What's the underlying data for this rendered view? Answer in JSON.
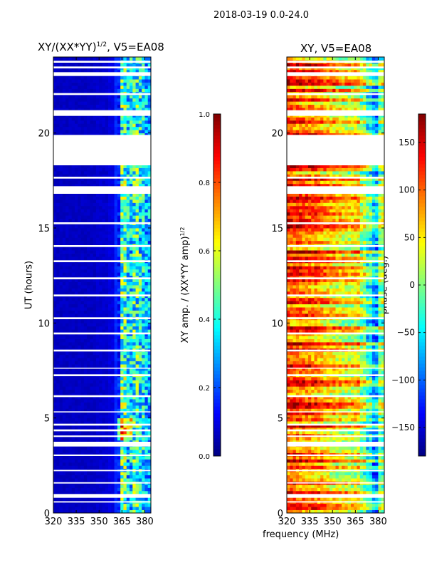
{
  "suptitle": "2018-03-19 0.0-24.0",
  "chart_data": [
    {
      "type": "heatmap",
      "title": "XY/(XX*YY)^1/2, V5=EA08",
      "title_main": "XY/(XX*YY)",
      "title_sup": "1/2",
      "title_tail": ", V5=EA08",
      "xlabel": "",
      "ylabel": "UT (hours)",
      "xlim": [
        320,
        384
      ],
      "ylim": [
        0,
        24
      ],
      "xticks": [
        "320",
        "335",
        "350",
        "365",
        "380"
      ],
      "yticks": [
        "0",
        "5",
        "10",
        "15",
        "20"
      ],
      "colorbar": {
        "label_main": "XY amp. / (XX*YY amp)",
        "label_sup": "1/2",
        "range": [
          0,
          1
        ],
        "ticks": [
          "0.0",
          "0.2",
          "0.4",
          "0.6",
          "0.8",
          "1.0"
        ]
      },
      "freq_bins_MHz": [
        320,
        324,
        328,
        332,
        336,
        340,
        344,
        348,
        352,
        356,
        360,
        364,
        368,
        372,
        376,
        380
      ],
      "mean_value_by_freq": [
        0.05,
        0.05,
        0.05,
        0.05,
        0.05,
        0.05,
        0.05,
        0.06,
        0.06,
        0.08,
        0.15,
        0.45,
        0.35,
        0.42,
        0.38,
        0.3
      ]
    },
    {
      "type": "heatmap",
      "title": "XY, V5=EA08",
      "xlabel": "frequency (MHz)",
      "ylabel": "",
      "xlim": [
        320,
        384
      ],
      "ylim": [
        0,
        24
      ],
      "xticks": [
        "320",
        "335",
        "350",
        "365",
        "380"
      ],
      "yticks": [
        "0",
        "5",
        "10",
        "15",
        "20"
      ],
      "colorbar": {
        "label": "phase (deg.)",
        "range": [
          -180,
          180
        ],
        "ticks": [
          "−150",
          "−100",
          "−50",
          "0",
          "50",
          "100",
          "150"
        ]
      },
      "freq_bins_MHz": [
        320,
        324,
        328,
        332,
        336,
        340,
        344,
        348,
        352,
        356,
        360,
        364,
        368,
        372,
        376,
        380
      ],
      "mean_value_by_freq": [
        120,
        115,
        110,
        105,
        100,
        90,
        80,
        70,
        60,
        55,
        50,
        60,
        20,
        -20,
        -60,
        10
      ]
    }
  ],
  "flagged_UT_hours": [
    [
      0.55,
      0.62
    ],
    [
      0.8,
      1.0
    ],
    [
      1.55,
      1.62
    ],
    [
      2.2,
      2.27
    ],
    [
      3.0,
      3.08
    ],
    [
      3.5,
      3.75
    ],
    [
      4.0,
      4.08
    ],
    [
      4.3,
      4.4
    ],
    [
      4.6,
      4.7
    ],
    [
      5.3,
      5.35
    ],
    [
      6.1,
      6.2
    ],
    [
      7.2,
      7.3
    ],
    [
      7.6,
      7.65
    ],
    [
      8.5,
      8.6
    ],
    [
      9.4,
      9.5
    ],
    [
      10.2,
      10.3
    ],
    [
      11.4,
      11.5
    ],
    [
      12.3,
      12.4
    ],
    [
      13.2,
      13.3
    ],
    [
      14.0,
      14.1
    ],
    [
      15.2,
      15.3
    ],
    [
      16.8,
      17.2
    ],
    [
      17.6,
      17.7
    ],
    [
      18.3,
      19.9
    ],
    [
      20.9,
      21.2
    ],
    [
      22.0,
      22.1
    ],
    [
      23.0,
      23.2
    ],
    [
      23.4,
      23.5
    ],
    [
      23.7,
      23.8
    ]
  ]
}
